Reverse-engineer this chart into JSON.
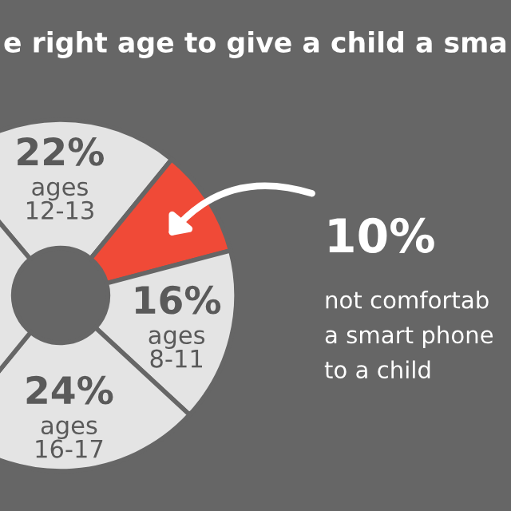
{
  "chart_data": {
    "type": "donut",
    "title": "e right age to give a child a sma",
    "categories": [
      "ages\n12-13",
      null,
      "ages\n8-11",
      "ages\n16-17",
      null
    ],
    "values": [
      22,
      10,
      16,
      24,
      28
    ],
    "colors": [
      "#e4e4e4",
      "#f04a37",
      "#e4e4e4",
      "#e4e4e4",
      "#e4e4e4"
    ],
    "value_labels": [
      "22%",
      null,
      "16%",
      "24%",
      null
    ],
    "annotations": [
      "10%",
      "not comfortab\na smart phone\nto a child"
    ]
  }
}
